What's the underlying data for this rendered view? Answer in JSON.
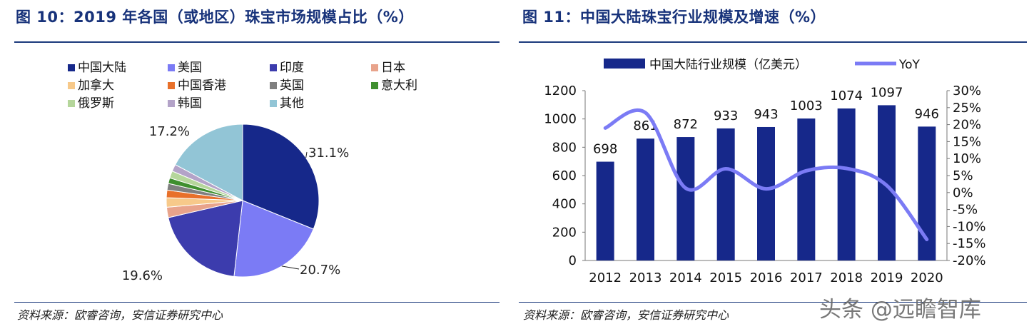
{
  "left": {
    "title": "图 10：2019 年各国（或地区）珠宝市场规模占比（%）",
    "source": "资料来源：欧睿咨询，安信证券研究中心"
  },
  "right": {
    "title": "图 11：中国大陆珠宝行业规模及增速（%）",
    "source": "资料来源：欧睿咨询，安信证券研究中心"
  },
  "watermark": "头条 @远瞻智库",
  "chart_data": [
    {
      "type": "pie",
      "legend": [
        "中国大陆",
        "美国",
        "印度",
        "日本",
        "加拿大",
        "中国香港",
        "英国",
        "意大利",
        "俄罗斯",
        "韩国",
        "其他"
      ],
      "colors": [
        "#16288a",
        "#7b7bf5",
        "#3c3cad",
        "#e8a38b",
        "#f7c98a",
        "#e8702a",
        "#7f7f7f",
        "#3f8f2f",
        "#b5d69b",
        "#b3a3c8",
        "#92c5d6"
      ],
      "values": [
        31.1,
        20.7,
        19.6,
        2.2,
        2.0,
        1.6,
        1.4,
        1.2,
        1.5,
        1.5,
        17.2
      ],
      "data_labels": [
        "31.1%",
        "20.7%",
        "19.6%",
        "",
        "",
        "",
        "",
        "",
        "",
        "",
        "17.2%"
      ],
      "legend_position": "top"
    },
    {
      "type": "bar+line",
      "categories": [
        "2012",
        "2013",
        "2014",
        "2015",
        "2016",
        "2017",
        "2018",
        "2019",
        "2020"
      ],
      "series": [
        {
          "name": "中国大陆行业规模（亿美元）",
          "type": "bar",
          "color": "#16288a",
          "values": [
            698,
            861,
            872,
            933,
            943,
            1003,
            1074,
            1097,
            946
          ]
        },
        {
          "name": "YoY",
          "type": "line",
          "color": "#7b7bf5",
          "axis": "right",
          "values": [
            19,
            23.5,
            1.3,
            7,
            1.1,
            6.4,
            7.1,
            2.1,
            -13.8
          ]
        }
      ],
      "y_left": {
        "min": 0,
        "max": 1200,
        "ticks": [
          "0",
          "200",
          "400",
          "600",
          "800",
          "1000",
          "1200"
        ]
      },
      "y_right": {
        "min": -20,
        "max": 30,
        "ticks": [
          "-20%",
          "-15%",
          "-10%",
          "-5%",
          "0%",
          "5%",
          "10%",
          "15%",
          "20%",
          "25%",
          "30%"
        ]
      },
      "legend_position": "top"
    }
  ]
}
